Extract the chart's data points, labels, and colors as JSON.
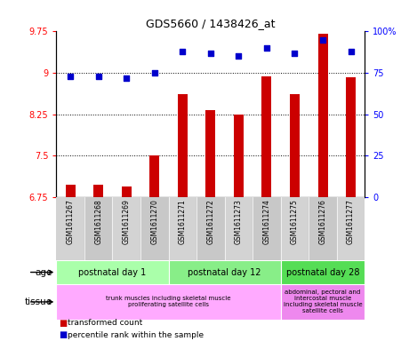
{
  "title": "GDS5660 / 1438426_at",
  "samples": [
    "GSM1611267",
    "GSM1611268",
    "GSM1611269",
    "GSM1611270",
    "GSM1611271",
    "GSM1611272",
    "GSM1611273",
    "GSM1611274",
    "GSM1611275",
    "GSM1611276",
    "GSM1611277"
  ],
  "transformed_count": [
    6.97,
    6.98,
    6.95,
    7.5,
    8.62,
    8.32,
    8.25,
    8.93,
    8.62,
    9.7,
    8.92
  ],
  "percentile_rank": [
    73,
    73,
    72,
    75,
    88,
    87,
    85,
    90,
    87,
    95,
    88
  ],
  "ylim_left": [
    6.75,
    9.75
  ],
  "ylim_right": [
    0,
    100
  ],
  "yticks_left": [
    6.75,
    7.5,
    8.25,
    9.0,
    9.75
  ],
  "yticks_right": [
    0,
    25,
    50,
    75,
    100
  ],
  "ytick_labels_left": [
    "6.75",
    "7.5",
    "8.25",
    "9",
    "9.75"
  ],
  "ytick_labels_right": [
    "0",
    "25",
    "50",
    "75",
    "100%"
  ],
  "bar_color": "#cc0000",
  "dot_color": "#0000cc",
  "bar_width": 0.35,
  "age_groups": [
    {
      "label": "postnatal day 1",
      "start": 0,
      "end": 4
    },
    {
      "label": "postnatal day 12",
      "start": 4,
      "end": 8
    },
    {
      "label": "postnatal day 28",
      "start": 8,
      "end": 11
    }
  ],
  "age_colors": [
    "#aaffaa",
    "#88ee88",
    "#55dd55"
  ],
  "tissue_groups": [
    {
      "label": "trunk muscles including skeletal muscle\nproliferating satellite cells",
      "start": 0,
      "end": 8
    },
    {
      "label": "abdominal, pectoral and\nintercostal muscle\nincluding skeletal muscle\nsatellite cells",
      "start": 8,
      "end": 11
    }
  ],
  "tissue_colors": [
    "#ffaaff",
    "#ee88ee"
  ],
  "legend_bar_label": "transformed count",
  "legend_dot_label": "percentile rank within the sample",
  "age_label": "age",
  "tissue_label": "tissue",
  "sample_col_color1": "#d3d3d3",
  "sample_col_color2": "#c8c8c8"
}
